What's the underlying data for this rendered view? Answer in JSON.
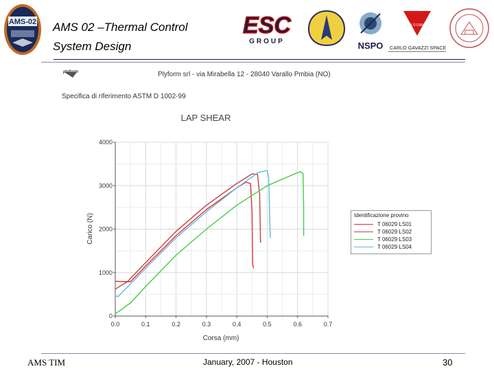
{
  "slide": {
    "title_line1": "AMS 02 –Thermal Control",
    "title_line2": "System Design",
    "footer_left": "AMS TIM",
    "footer_center": "January, 2007 - Houston",
    "footer_right": "30"
  },
  "logos": {
    "ams_badge": "AMS-02",
    "esc_word": "ESC",
    "esc_sub": "GROUP",
    "nspo": "NSPO",
    "carlo_small": "CARLO GAVAZZI",
    "carlo_caption": "CARLO GAVAZZI SPACE SpA"
  },
  "document": {
    "company_logo": "plyform",
    "company_line": "Plyform srl - via Mirabella 12 - 28040 Varallo Pmbia (NO)",
    "spec_line": "Specifica di riferimento ASTM D 1002-99"
  },
  "chart_data": {
    "type": "line",
    "title": "LAP SHEAR",
    "xlabel": "Corsa (mm)",
    "ylabel": "Carico (N)",
    "xlim": [
      0,
      0.7
    ],
    "ylim": [
      0,
      4000
    ],
    "xticks": [
      "0.0",
      "0.1",
      "0.2",
      "0.3",
      "0.4",
      "0.5",
      "0.6",
      "0.7"
    ],
    "yticks": [
      "0",
      "1000",
      "2000",
      "3000",
      "4000"
    ],
    "grid": true,
    "legend_title": "Identificazione provino",
    "legend_position": "right",
    "series": [
      {
        "name": "T 06029 LS01",
        "color": "#e03030",
        "x": [
          0.0,
          0.05,
          0.1,
          0.2,
          0.3,
          0.4,
          0.43,
          0.445,
          0.45,
          0.452,
          0.455
        ],
        "y": [
          800,
          790,
          1150,
          1850,
          2450,
          2950,
          3080,
          3050,
          2400,
          1200,
          1100
        ]
      },
      {
        "name": "T 06029 LS02",
        "color": "#c04040",
        "x": [
          0.0,
          0.04,
          0.1,
          0.2,
          0.3,
          0.4,
          0.45,
          0.468,
          0.475,
          0.478,
          0.48
        ],
        "y": [
          620,
          790,
          1230,
          1950,
          2550,
          3050,
          3270,
          3260,
          2800,
          1700,
          1700
        ]
      },
      {
        "name": "T 06029 LS03",
        "color": "#40d040",
        "x": [
          0.0,
          0.05,
          0.1,
          0.2,
          0.3,
          0.4,
          0.5,
          0.6,
          0.61,
          0.618,
          0.62,
          0.62
        ],
        "y": [
          50,
          300,
          680,
          1400,
          2000,
          2550,
          3000,
          3300,
          3320,
          3280,
          2500,
          1850
        ]
      },
      {
        "name": "T 06029 LS04",
        "color": "#60b8e0",
        "x": [
          0.0,
          0.01,
          0.1,
          0.2,
          0.3,
          0.4,
          0.47,
          0.5,
          0.505,
          0.508,
          0.51
        ],
        "y": [
          460,
          450,
          1100,
          1800,
          2400,
          2950,
          3300,
          3350,
          3200,
          2300,
          1800
        ]
      }
    ]
  }
}
